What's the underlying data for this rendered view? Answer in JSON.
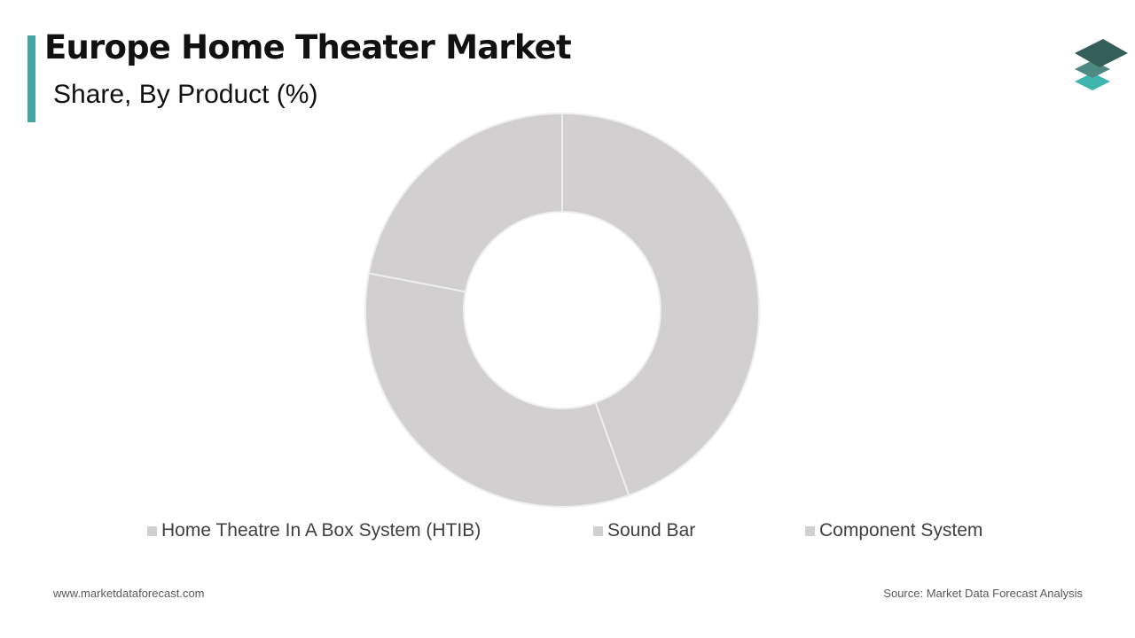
{
  "header": {
    "title": "Europe Home Theater Market",
    "subtitle": "Share, By Product (%)"
  },
  "footer": {
    "website": "www.marketdataforecast.com",
    "source": "Source: Market Data Forecast Analysis"
  },
  "colors": {
    "accent": "#45A3A0",
    "slice_fill": "#D1CFD0",
    "slice_border": "#EEEEEE",
    "logo_dark": "#335F58",
    "logo_mid": "#4F8A82",
    "logo_light": "#3FB5AE"
  },
  "icons": {
    "logo": "layered-stack-icon"
  },
  "chart_data": {
    "type": "pie",
    "variant": "donut",
    "categories": [
      "Home Theatre In A Box System (HTIB)",
      "Sound Bar",
      "Component System"
    ],
    "values": [
      44.5,
      33.5,
      22.0
    ],
    "legend_position": "bottom"
  }
}
